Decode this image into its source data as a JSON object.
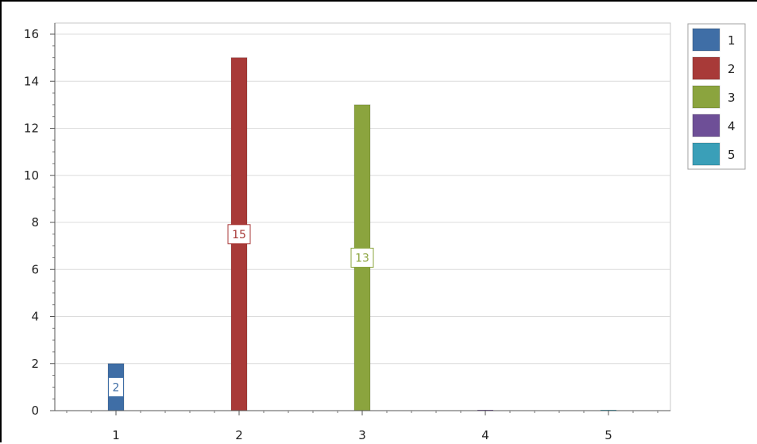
{
  "chart_data": {
    "type": "bar",
    "categories": [
      "1",
      "2",
      "3",
      "4",
      "5"
    ],
    "series": [
      {
        "name": "1",
        "color": "#3f6ea6",
        "values": [
          2,
          0,
          0,
          0,
          0
        ]
      },
      {
        "name": "2",
        "color": "#a83a38",
        "values": [
          0,
          15,
          0,
          0,
          0
        ]
      },
      {
        "name": "3",
        "color": "#8ba43e",
        "values": [
          0,
          0,
          13,
          0,
          0
        ]
      },
      {
        "name": "4",
        "color": "#6e4f97",
        "values": [
          0,
          0,
          0,
          0,
          0
        ]
      },
      {
        "name": "5",
        "color": "#3a9fb8",
        "values": [
          0,
          0,
          0,
          0,
          0
        ]
      }
    ],
    "data_labels": [
      {
        "category": "1",
        "value": 2,
        "text": "2",
        "color": "#3f6ea6"
      },
      {
        "category": "2",
        "value": 15,
        "text": "15",
        "color": "#a83a38"
      },
      {
        "category": "3",
        "value": 13,
        "text": "13",
        "color": "#8ba43e"
      }
    ],
    "ylim": [
      0,
      16
    ],
    "yticks": [
      "0",
      "2",
      "4",
      "6",
      "8",
      "10",
      "12",
      "14",
      "16"
    ],
    "grid": true,
    "legend_position": "top-right",
    "title": "",
    "xlabel": "",
    "ylabel": ""
  }
}
